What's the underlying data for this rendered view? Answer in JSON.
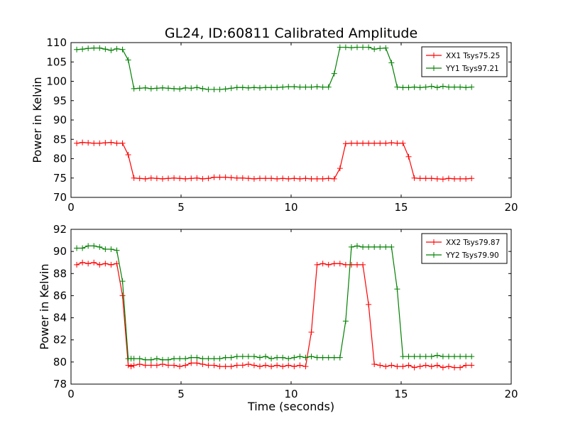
{
  "chart_data": [
    {
      "type": "line",
      "title": "GL24, ID:60811 Calibrated Amplitude",
      "xlabel": "",
      "ylabel": "Power in Kelvin",
      "xlim": [
        0,
        20
      ],
      "ylim": [
        70,
        110
      ],
      "xticks": [
        "0",
        "5",
        "10",
        "15",
        "20"
      ],
      "yticks": [
        "70",
        "75",
        "80",
        "85",
        "90",
        "95",
        "100",
        "105",
        "110"
      ],
      "grid": false,
      "legend": "top-right",
      "x": [
        0.26,
        0.52,
        0.78,
        1.04,
        1.3,
        1.56,
        1.82,
        2.08,
        2.34,
        2.6,
        2.86,
        3.12,
        3.38,
        3.64,
        3.9,
        4.16,
        4.42,
        4.68,
        4.94,
        5.2,
        5.46,
        5.72,
        5.98,
        6.24,
        6.5,
        6.76,
        7.02,
        7.28,
        7.54,
        7.8,
        8.06,
        8.32,
        8.58,
        8.84,
        9.1,
        9.36,
        9.62,
        9.88,
        10.14,
        10.4,
        10.66,
        10.92,
        11.18,
        11.44,
        11.7,
        11.96,
        12.22,
        12.48,
        12.74,
        13.0,
        13.26,
        13.52,
        13.78,
        14.04,
        14.3,
        14.56,
        14.82,
        15.08,
        15.34,
        15.6,
        15.86,
        16.12,
        16.38,
        16.64,
        16.9,
        17.16,
        17.42,
        17.68,
        17.94,
        18.2
      ],
      "series": [
        {
          "name": "XX1 Tsys75.25",
          "color": "#ff0000",
          "values": [
            84.0,
            84.2,
            84.1,
            84.0,
            84.0,
            84.1,
            84.2,
            84.0,
            84.0,
            81.0,
            75.0,
            74.9,
            74.8,
            75.0,
            74.9,
            74.8,
            74.9,
            75.0,
            74.9,
            74.8,
            74.9,
            75.0,
            74.8,
            74.9,
            75.2,
            75.2,
            75.2,
            75.1,
            75.0,
            75.0,
            74.9,
            74.8,
            74.9,
            74.9,
            74.9,
            74.8,
            74.9,
            74.8,
            74.9,
            74.8,
            74.9,
            74.8,
            74.8,
            74.8,
            74.9,
            74.8,
            77.5,
            83.9,
            84.0,
            84.0,
            84.0,
            84.0,
            84.0,
            84.0,
            84.0,
            84.1,
            84.0,
            84.0,
            80.5,
            75.0,
            74.9,
            74.9,
            74.9,
            74.8,
            74.7,
            74.9,
            74.8,
            74.8,
            74.8,
            74.9
          ]
        },
        {
          "name": "YY1 Tsys97.21",
          "color": "#008000",
          "values": [
            108.2,
            108.3,
            108.5,
            108.6,
            108.6,
            108.3,
            108.0,
            108.4,
            108.2,
            105.5,
            98.1,
            98.2,
            98.3,
            98.1,
            98.2,
            98.3,
            98.2,
            98.1,
            98.0,
            98.3,
            98.2,
            98.4,
            98.1,
            97.9,
            97.9,
            97.9,
            98.0,
            98.2,
            98.4,
            98.4,
            98.3,
            98.4,
            98.3,
            98.4,
            98.4,
            98.4,
            98.5,
            98.6,
            98.6,
            98.5,
            98.5,
            98.5,
            98.6,
            98.5,
            98.5,
            102.0,
            108.8,
            108.8,
            108.7,
            108.8,
            108.8,
            108.8,
            108.3,
            108.5,
            108.6,
            104.8,
            98.5,
            98.4,
            98.4,
            98.5,
            98.4,
            98.5,
            98.7,
            98.4,
            98.7,
            98.5,
            98.5,
            98.5,
            98.4,
            98.5
          ]
        }
      ]
    },
    {
      "type": "line",
      "title": "",
      "xlabel": "Time (seconds)",
      "ylabel": "Power in Kelvin",
      "xlim": [
        0,
        20
      ],
      "ylim": [
        78,
        92
      ],
      "xticks": [
        "0",
        "5",
        "10",
        "15",
        "20"
      ],
      "yticks": [
        "78",
        "80",
        "82",
        "84",
        "86",
        "88",
        "90",
        "92"
      ],
      "grid": false,
      "legend": "top-right",
      "x": [
        0.26,
        0.52,
        0.78,
        1.04,
        1.3,
        1.56,
        1.82,
        2.08,
        2.34,
        2.6,
        2.73,
        2.86,
        3.12,
        3.38,
        3.64,
        3.9,
        4.16,
        4.42,
        4.68,
        4.94,
        5.2,
        5.46,
        5.72,
        5.98,
        6.24,
        6.5,
        6.76,
        7.02,
        7.28,
        7.54,
        7.8,
        8.06,
        8.32,
        8.58,
        8.84,
        9.1,
        9.36,
        9.62,
        9.88,
        10.14,
        10.4,
        10.66,
        10.92,
        11.18,
        11.44,
        11.7,
        11.96,
        12.22,
        12.48,
        12.74,
        13.0,
        13.26,
        13.52,
        13.78,
        14.04,
        14.3,
        14.56,
        14.82,
        15.08,
        15.34,
        15.6,
        15.86,
        16.12,
        16.38,
        16.64,
        16.9,
        17.16,
        17.42,
        17.68,
        17.94,
        18.2
      ],
      "series": [
        {
          "name": "XX2 Tsys79.87",
          "color": "#ff0000",
          "values": [
            88.8,
            89.0,
            88.9,
            89.0,
            88.8,
            88.9,
            88.8,
            88.9,
            86.0,
            79.7,
            79.6,
            79.7,
            79.8,
            79.7,
            79.7,
            79.7,
            79.8,
            79.7,
            79.7,
            79.6,
            79.7,
            79.9,
            79.9,
            79.8,
            79.7,
            79.7,
            79.6,
            79.6,
            79.6,
            79.7,
            79.7,
            79.8,
            79.7,
            79.6,
            79.7,
            79.6,
            79.7,
            79.6,
            79.7,
            79.6,
            79.7,
            79.6,
            82.7,
            88.8,
            88.9,
            88.8,
            88.9,
            88.9,
            88.8,
            88.8,
            88.8,
            88.8,
            85.2,
            79.8,
            79.7,
            79.6,
            79.7,
            79.6,
            79.6,
            79.7,
            79.5,
            79.6,
            79.7,
            79.6,
            79.7,
            79.5,
            79.6,
            79.5,
            79.5,
            79.7,
            79.7
          ]
        },
        {
          "name": "YY2 Tsys79.90",
          "color": "#008000",
          "values": [
            90.3,
            90.3,
            90.5,
            90.5,
            90.4,
            90.2,
            90.2,
            90.1,
            87.3,
            80.3,
            80.3,
            80.3,
            80.3,
            80.2,
            80.2,
            80.3,
            80.2,
            80.2,
            80.3,
            80.3,
            80.3,
            80.4,
            80.4,
            80.3,
            80.3,
            80.3,
            80.3,
            80.4,
            80.4,
            80.5,
            80.5,
            80.5,
            80.5,
            80.4,
            80.5,
            80.3,
            80.4,
            80.4,
            80.3,
            80.4,
            80.5,
            80.4,
            80.5,
            80.4,
            80.4,
            80.4,
            80.4,
            80.4,
            83.7,
            90.4,
            90.5,
            90.4,
            90.4,
            90.4,
            90.4,
            90.4,
            90.4,
            86.6,
            80.5,
            80.5,
            80.5,
            80.5,
            80.5,
            80.5,
            80.6,
            80.5,
            80.5,
            80.5,
            80.5,
            80.5,
            80.5
          ]
        }
      ]
    }
  ]
}
